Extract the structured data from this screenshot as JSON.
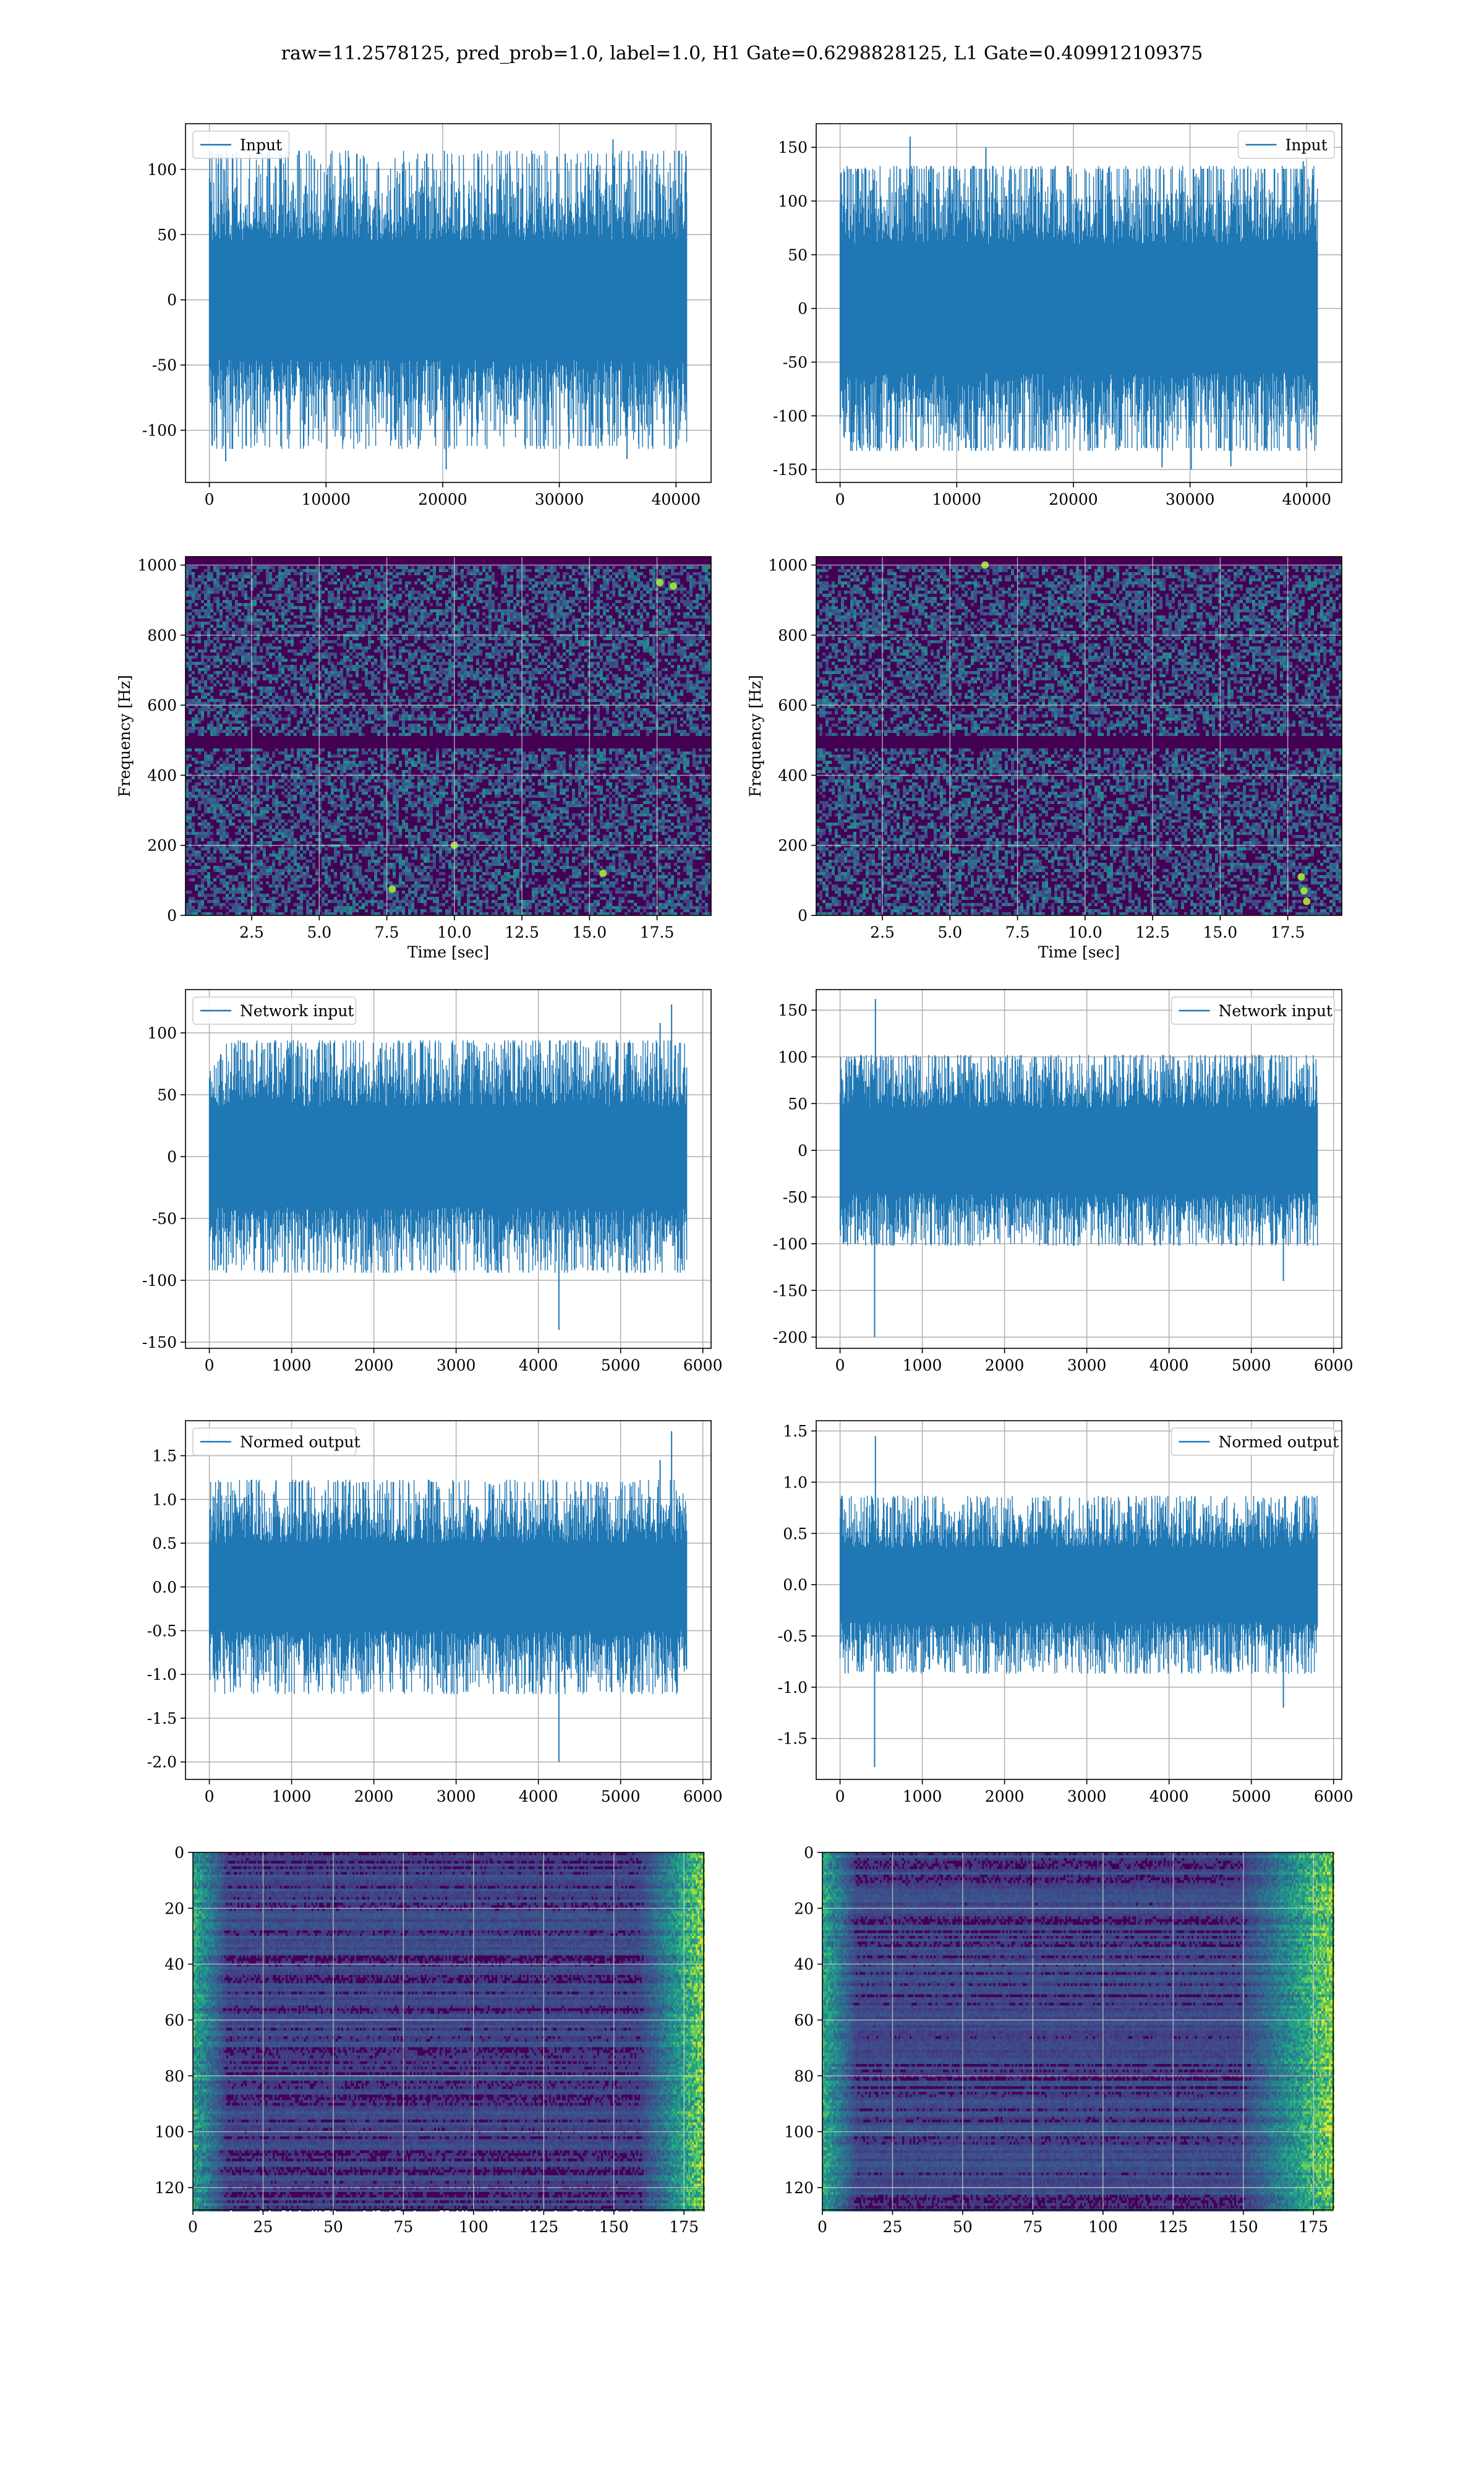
{
  "figure": {
    "suptitle": "raw=11.2578125, pred_prob=1.0, label=1.0, H1 Gate=0.6298828125, L1 Gate=0.409912109375"
  },
  "colors": {
    "line": "#1f77b4",
    "grid": "#b0b0b0",
    "viridis": [
      "#440154",
      "#482475",
      "#414487",
      "#355f8d",
      "#2a788e",
      "#21918c",
      "#22a884",
      "#44bf70",
      "#7ad151",
      "#bddf26",
      "#fde725"
    ]
  },
  "chart_data": [
    {
      "id": "input-h1",
      "type": "line",
      "signal": "noise",
      "legend": "Input",
      "legend_loc": "upper left",
      "x_range": [
        0,
        40960
      ],
      "xlim": [
        -2048,
        43008
      ],
      "ylim": [
        -140,
        135
      ],
      "xticks": [
        0,
        10000,
        20000,
        30000,
        40000
      ],
      "yticks": [
        -100,
        -50,
        0,
        50,
        100
      ],
      "band": 38,
      "peak": 112,
      "outliers": [
        [
          1400,
          -124
        ],
        [
          9000,
          108
        ],
        [
          20300,
          -130
        ],
        [
          30500,
          112
        ],
        [
          34600,
          123
        ],
        [
          35800,
          -122
        ]
      ],
      "grid": true
    },
    {
      "id": "input-l1",
      "type": "line",
      "signal": "noise",
      "legend": "Input",
      "legend_loc": "upper right",
      "x_range": [
        0,
        40960
      ],
      "xlim": [
        -2048,
        43008
      ],
      "ylim": [
        -162,
        172
      ],
      "xticks": [
        0,
        10000,
        20000,
        30000,
        40000
      ],
      "yticks": [
        -150,
        -100,
        -50,
        0,
        50,
        100,
        150
      ],
      "band": 50,
      "peak": 130,
      "outliers": [
        [
          6000,
          160
        ],
        [
          12500,
          150
        ],
        [
          27600,
          -148
        ],
        [
          30100,
          -150
        ],
        [
          33500,
          -147
        ],
        [
          39700,
          137
        ]
      ],
      "grid": true
    },
    {
      "id": "spectrogram-h1",
      "type": "heatmap",
      "signal": "spectrogram",
      "xlabel": "Time [sec]",
      "ylabel": "Frequency [Hz]",
      "xlim": [
        0.05,
        19.5
      ],
      "ylim": [
        0,
        1024
      ],
      "xticks": [
        2.5,
        5.0,
        7.5,
        10.0,
        12.5,
        15.0,
        17.5
      ],
      "yticks": [
        0,
        200,
        400,
        600,
        800,
        1000
      ],
      "dark_band_hz": [
        480,
        520
      ],
      "bright_spots": [
        [
          17.6,
          950
        ],
        [
          18.1,
          940
        ],
        [
          10.0,
          200
        ],
        [
          7.7,
          75
        ],
        [
          15.5,
          120
        ]
      ],
      "grid": true
    },
    {
      "id": "spectrogram-l1",
      "type": "heatmap",
      "signal": "spectrogram",
      "xlabel": "Time [sec]",
      "ylabel": "Frequency [Hz]",
      "xlim": [
        0.05,
        19.5
      ],
      "ylim": [
        0,
        1024
      ],
      "xticks": [
        2.5,
        5.0,
        7.5,
        10.0,
        12.5,
        15.0,
        17.5
      ],
      "yticks": [
        0,
        200,
        400,
        600,
        800,
        1000
      ],
      "dark_band_hz": [
        480,
        520
      ],
      "bright_spots": [
        [
          6.3,
          1000
        ],
        [
          18.1,
          70
        ],
        [
          18.0,
          110
        ],
        [
          18.2,
          40
        ]
      ],
      "grid": true
    },
    {
      "id": "network-input-h1",
      "type": "line",
      "signal": "noise",
      "legend": "Network input",
      "legend_loc": "upper left",
      "x_range": [
        0,
        5810
      ],
      "xlim": [
        -290,
        6100
      ],
      "ylim": [
        -155,
        135
      ],
      "xticks": [
        0,
        1000,
        2000,
        3000,
        4000,
        5000,
        6000
      ],
      "yticks": [
        -150,
        -100,
        -50,
        0,
        50,
        100
      ],
      "band": 34,
      "peak": 92,
      "outliers": [
        [
          4250,
          -140
        ],
        [
          5620,
          123
        ],
        [
          5480,
          108
        ]
      ],
      "grid": true
    },
    {
      "id": "network-input-l1",
      "type": "line",
      "signal": "noise",
      "legend": "Network input",
      "legend_loc": "upper right",
      "x_range": [
        0,
        5810
      ],
      "xlim": [
        -290,
        6100
      ],
      "ylim": [
        -212,
        172
      ],
      "xticks": [
        0,
        1000,
        2000,
        3000,
        4000,
        5000,
        6000
      ],
      "yticks": [
        -200,
        -150,
        -100,
        -50,
        0,
        50,
        100,
        150
      ],
      "band": 38,
      "peak": 100,
      "outliers": [
        [
          420,
          -200
        ],
        [
          430,
          162
        ],
        [
          5390,
          -140
        ]
      ],
      "grid": true
    },
    {
      "id": "normed-output-h1",
      "type": "line",
      "signal": "noise",
      "legend": "Normed output",
      "legend_loc": "upper left",
      "x_range": [
        0,
        5810
      ],
      "xlim": [
        -290,
        6100
      ],
      "ylim": [
        -2.2,
        1.9
      ],
      "xticks": [
        0,
        1000,
        2000,
        3000,
        4000,
        5000,
        6000
      ],
      "yticks": [
        -2.0,
        -1.5,
        -1.0,
        -0.5,
        0.0,
        0.5,
        1.0,
        1.5
      ],
      "band": 0.42,
      "peak": 1.2,
      "outliers": [
        [
          4250,
          -2.0
        ],
        [
          5620,
          1.78
        ],
        [
          5480,
          1.45
        ]
      ],
      "grid": true
    },
    {
      "id": "normed-output-l1",
      "type": "line",
      "signal": "noise",
      "legend": "Normed output",
      "legend_loc": "upper right",
      "x_range": [
        0,
        5810
      ],
      "xlim": [
        -290,
        6100
      ],
      "ylim": [
        -1.9,
        1.6
      ],
      "xticks": [
        0,
        1000,
        2000,
        3000,
        4000,
        5000,
        6000
      ],
      "yticks": [
        -1.5,
        -1.0,
        -0.5,
        0.0,
        0.5,
        1.0,
        1.5
      ],
      "band": 0.3,
      "peak": 0.85,
      "outliers": [
        [
          420,
          -1.78
        ],
        [
          430,
          1.45
        ],
        [
          5390,
          -1.2
        ]
      ],
      "grid": true
    },
    {
      "id": "activation-h1",
      "type": "heatmap",
      "signal": "activation",
      "xlim": [
        0,
        182
      ],
      "ylim": [
        128,
        0
      ],
      "xticks": [
        0,
        25,
        50,
        75,
        100,
        125,
        150,
        175
      ],
      "yticks": [
        0,
        20,
        40,
        60,
        80,
        100,
        120
      ],
      "bright_columns": [
        158,
        182
      ],
      "grid": true
    },
    {
      "id": "activation-l1",
      "type": "heatmap",
      "signal": "activation",
      "xlim": [
        0,
        182
      ],
      "ylim": [
        128,
        0
      ],
      "xticks": [
        0,
        25,
        50,
        75,
        100,
        125,
        150,
        175
      ],
      "yticks": [
        0,
        20,
        40,
        60,
        80,
        100,
        120
      ],
      "bright_columns": [
        148,
        182
      ],
      "grid": true
    }
  ]
}
